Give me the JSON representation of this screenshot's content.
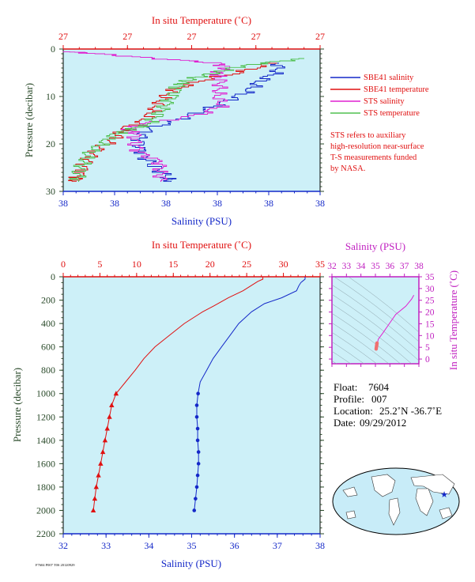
{
  "colors": {
    "salinity": "#1428c8",
    "temperature": "#e01010",
    "sts_salinity": "#e020d0",
    "sts_temperature": "#50c050",
    "plot_bg": "#cdf0f8",
    "pressure_axis": "#2a4a2a",
    "ts_axis": "#c020c0"
  },
  "top_chart": {
    "top_axis_label": "In situ Temperature (˚C)",
    "top_ticks": [
      "27",
      "27",
      "27",
      "27",
      "27"
    ],
    "bottom_axis_label": "Salinity (PSU)",
    "bottom_ticks": [
      "38",
      "38",
      "38",
      "38",
      "38",
      "38"
    ],
    "y_axis_label": "Pressure (decibar)",
    "y_ticks": [
      "0",
      "10",
      "20",
      "30"
    ],
    "legend": [
      "SBE41 salinity",
      "SBE41 temperature",
      "STS salinity",
      "STS temperature"
    ],
    "note": [
      "STS refers to auxiliary",
      "high-resolution near-surface",
      "T-S measurements funded",
      "by NASA."
    ]
  },
  "chart_data": [
    {
      "type": "line",
      "title": "",
      "ylabel": "Pressure (decibar)",
      "xlabel": "Salinity (PSU)",
      "x2label": "In situ Temperature (˚C)",
      "ylim": [
        0,
        30
      ],
      "y_inverted": true,
      "grid": false,
      "legend_placement": "right",
      "series": [
        {
          "name": "SBE41 salinity",
          "p": [
            3,
            5,
            7,
            9,
            11,
            13,
            15,
            17,
            19,
            21,
            23,
            25,
            27,
            28
          ],
          "x": [
            0.84,
            0.83,
            0.76,
            0.72,
            0.64,
            0.55,
            0.45,
            0.33,
            0.3,
            0.3,
            0.32,
            0.36,
            0.4,
            0.42
          ]
        },
        {
          "name": "SBE41 temperature",
          "p": [
            3,
            5,
            7,
            9,
            11,
            13,
            15,
            17,
            19,
            21,
            23,
            25,
            27,
            28
          ],
          "x": [
            0.82,
            0.69,
            0.52,
            0.42,
            0.38,
            0.35,
            0.32,
            0.23,
            0.2,
            0.14,
            0.1,
            0.08,
            0.06,
            0.05
          ]
        },
        {
          "name": "STS salinity",
          "p": [
            0.5,
            1,
            2,
            3,
            4,
            5,
            6,
            8,
            10,
            12,
            14,
            16,
            17,
            18,
            20,
            22,
            24,
            26,
            28
          ],
          "x": [
            0.0,
            0.12,
            0.35,
            0.6,
            0.64,
            0.6,
            0.61,
            0.61,
            0.6,
            0.62,
            0.53,
            0.3,
            0.25,
            0.28,
            0.28,
            0.3,
            0.38,
            0.38,
            0.38
          ]
        },
        {
          "name": "STS temperature",
          "p": [
            2,
            3,
            4,
            5,
            6,
            7,
            8,
            10,
            12,
            14,
            16,
            17,
            18,
            20,
            22,
            24,
            26,
            28
          ],
          "x": [
            0.95,
            0.78,
            0.66,
            0.6,
            0.52,
            0.47,
            0.45,
            0.43,
            0.4,
            0.37,
            0.33,
            0.26,
            0.2,
            0.15,
            0.1,
            0.08,
            0.06,
            0.06
          ]
        }
      ]
    },
    {
      "type": "line",
      "title": "",
      "ylabel": "Pressure (decibar)",
      "xlabel": "Salinity (PSU)",
      "x2label": "In situ Temperature (˚C)",
      "xlim": [
        32,
        38
      ],
      "x2lim": [
        0,
        35
      ],
      "ylim": [
        0,
        2200
      ],
      "y_inverted": true,
      "grid": false,
      "series": [
        {
          "name": "",
          "axis": "salinity",
          "p": [
            0,
            20,
            50,
            80,
            120,
            180,
            230,
            300,
            400,
            500,
            600,
            700,
            800,
            900,
            1000,
            1100,
            1200,
            1300,
            1400,
            1500,
            1600,
            1700,
            1800,
            1900,
            2000
          ],
          "x": [
            37.65,
            37.65,
            37.55,
            37.5,
            37.45,
            37.1,
            36.7,
            36.4,
            36.1,
            35.9,
            35.7,
            35.5,
            35.35,
            35.2,
            35.15,
            35.12,
            35.12,
            35.14,
            35.14,
            35.16,
            35.16,
            35.14,
            35.12,
            35.09,
            35.06
          ]
        },
        {
          "name": "",
          "axis": "temperature",
          "p": [
            0,
            20,
            40,
            80,
            120,
            180,
            250,
            300,
            400,
            500,
            600,
            700,
            800,
            900,
            1000,
            1100,
            1200,
            1300,
            1400,
            1500,
            1600,
            1700,
            1800,
            1900,
            2000
          ],
          "x": [
            27.2,
            27.2,
            26.5,
            25.5,
            24.5,
            22.5,
            20.5,
            19.0,
            16.5,
            14.5,
            12.5,
            11.0,
            9.8,
            8.5,
            7.2,
            6.6,
            6.3,
            6.0,
            5.7,
            5.4,
            5.1,
            4.8,
            4.5,
            4.3,
            4.1
          ]
        }
      ],
      "y_ticks": [
        0,
        200,
        400,
        600,
        800,
        1000,
        1200,
        1400,
        1600,
        1800,
        2000,
        2200
      ],
      "x_ticks": [
        32,
        33,
        34,
        35,
        36,
        37,
        38
      ],
      "x2_ticks": [
        0,
        5,
        10,
        15,
        20,
        25,
        30,
        35
      ]
    },
    {
      "type": "line",
      "title": "",
      "xlabel": "Salinity (PSU)",
      "ylabel": "In situ Temperature (˚C)",
      "xlim": [
        32,
        38
      ],
      "ylim": [
        -2,
        35
      ],
      "x_ticks": [
        32,
        33,
        34,
        35,
        36,
        37,
        38
      ],
      "y_ticks": [
        0,
        5,
        10,
        15,
        20,
        25,
        30,
        35
      ],
      "series": [
        {
          "name": "",
          "x": [
            37.65,
            37.5,
            37.1,
            36.4,
            35.9,
            35.5,
            35.2,
            35.15,
            35.12,
            35.1
          ],
          "y": [
            27.2,
            25.5,
            22.5,
            19.0,
            14.5,
            11.0,
            8.5,
            7.2,
            6.0,
            4.1
          ]
        }
      ]
    }
  ],
  "info": {
    "float_label": "Float:",
    "float": "7604",
    "profile_label": "Profile:",
    "profile": "007",
    "location_label": "Location:",
    "location": "25.2˚N  -36.7˚E",
    "date_label": "Date:",
    "date": "09/29/2012"
  },
  "footer_code": "F7604 P007 T0S 20120929",
  "map": {
    "marker": "★"
  }
}
